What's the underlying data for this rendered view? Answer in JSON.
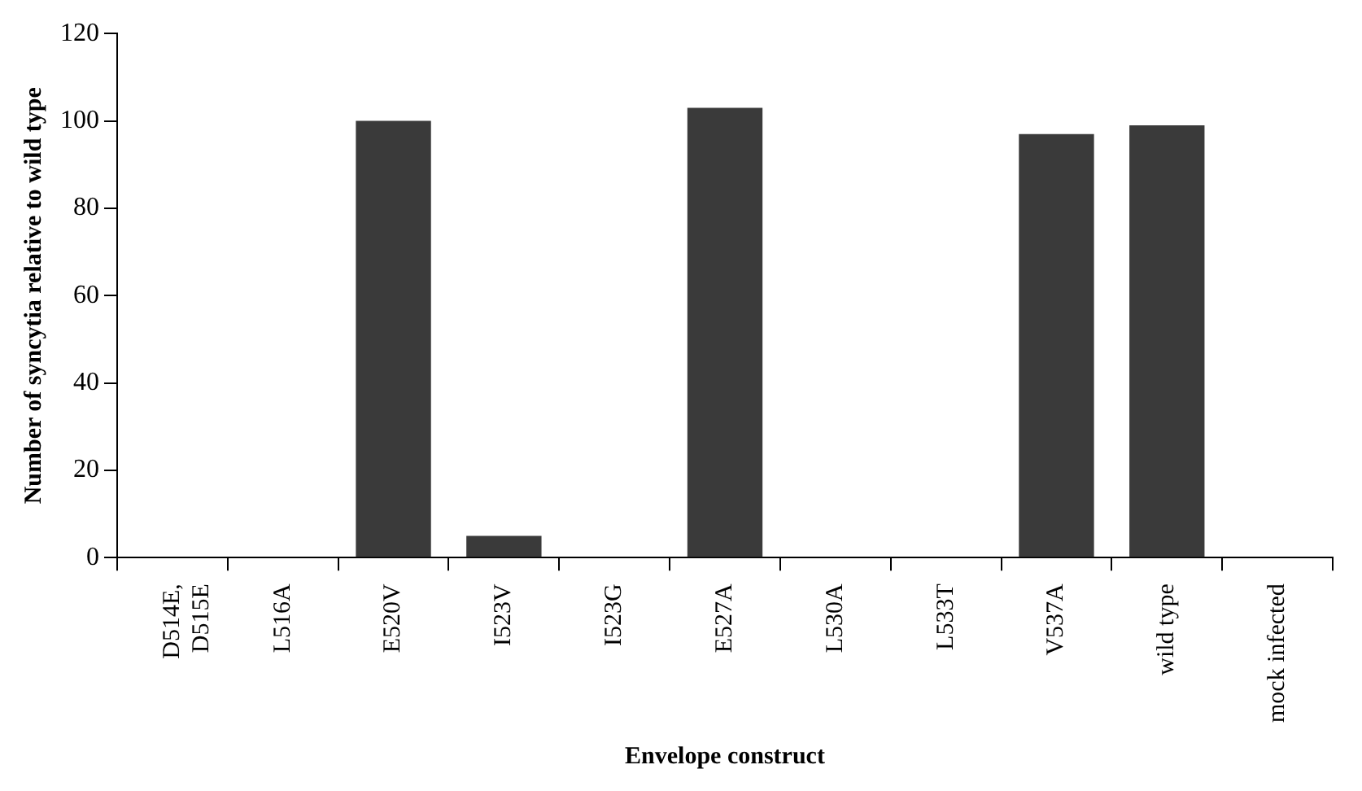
{
  "chart_data": {
    "type": "bar",
    "xlabel": "Envelope construct",
    "ylabel": "Number of syncytia relative to wild type",
    "categories": [
      "D514E, D515E",
      "L516A",
      "E520V",
      "I523V",
      "I523G",
      "E527A",
      "L530A",
      "L533T",
      "V537A",
      "wild type",
      "mock infected"
    ],
    "values": [
      0,
      0,
      100,
      5,
      0,
      103,
      0,
      0,
      97,
      99,
      0
    ],
    "color": "#3a3a3a",
    "ylim": [
      0,
      120
    ],
    "yticks": [
      0,
      20,
      40,
      60,
      80,
      100,
      120
    ],
    "grid": false,
    "legend": false
  }
}
